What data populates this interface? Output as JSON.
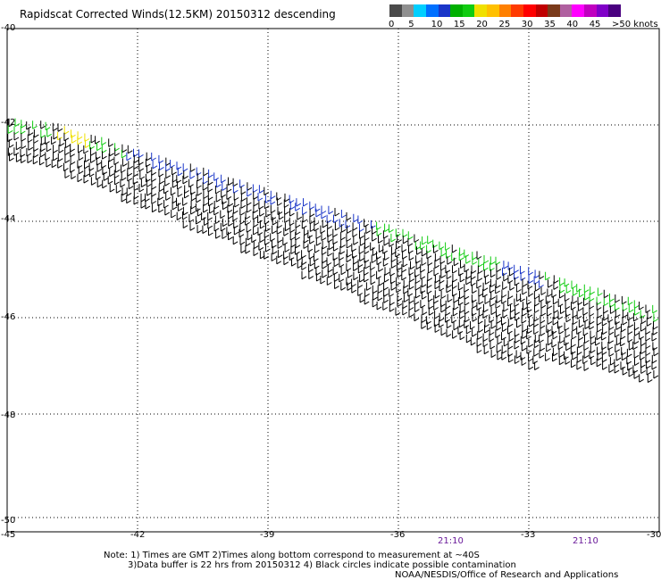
{
  "title": "Rapidscat Corrected Winds(12.5KM) 20150312 descending",
  "colorbar": {
    "labels": [
      "0",
      "5",
      "10",
      "15",
      "20",
      "25",
      "30",
      "35",
      "40",
      "45",
      ">50 knots"
    ],
    "colors": [
      "#4a4a4a",
      "#8f8f8f",
      "#00cfff",
      "#0070ff",
      "#1a36c8",
      "#00b000",
      "#11cc11",
      "#f0e000",
      "#ffc000",
      "#ff8000",
      "#ff3a00",
      "#ff0000",
      "#c00000",
      "#7a3a1a",
      "#b060a0",
      "#ff00ff",
      "#c000c0",
      "#8000c8",
      "#4a0080"
    ]
  },
  "map": {
    "lon_ticks": [
      "-45",
      "-42",
      "-39",
      "-36",
      "-33",
      "-30"
    ],
    "lat_ticks": [
      "-40",
      "-42",
      "-44",
      "-46",
      "-48",
      "-50"
    ],
    "time_labels": [
      "21:10",
      "21:10"
    ],
    "grid": true
  },
  "notes": {
    "line1": "Note: 1) Times are GMT 2)Times along bottom correspond to measurement at ~40S",
    "line2": "3)Data buffer is 22 hrs from 20150312 4) Black circles indicate possible contamination",
    "credit": "NOAA/NESDIS/Office of Research and Applications"
  },
  "swath": {
    "description_colors": {
      "calm": "#000000",
      "light": "#1a36c8",
      "moderate": "#11cc11",
      "strong": "#f0e000"
    },
    "lon_range": [
      -45,
      -30
    ],
    "lat_range": [
      -50,
      -40
    ]
  }
}
